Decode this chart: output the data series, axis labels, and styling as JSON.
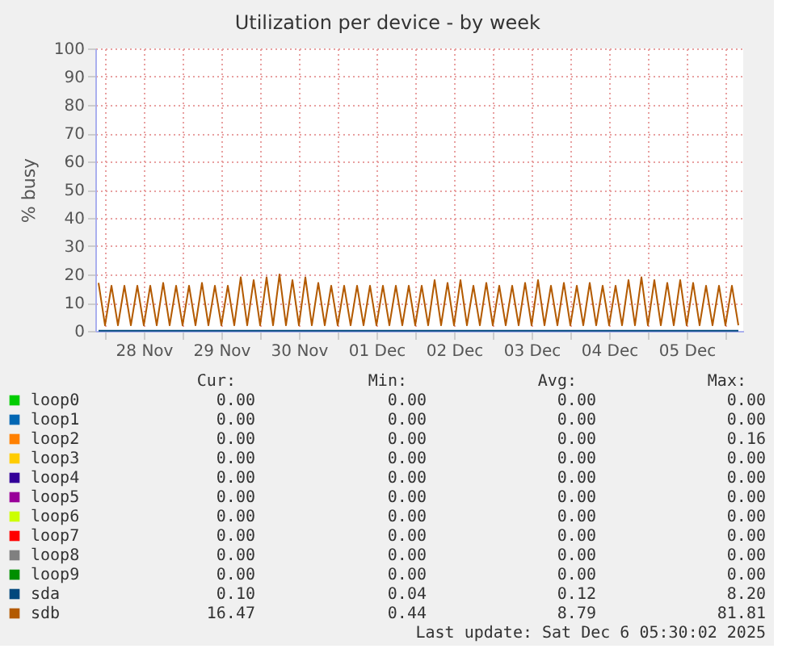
{
  "chart_data": {
    "type": "line",
    "title": "Utilization per device - by week",
    "ylabel": "% busy",
    "xlim": [
      "2025-11-27T21:00",
      "2025-12-06T05:30"
    ],
    "xticks": [
      {
        "value": "2025-11-28T00:00",
        "label": null
      },
      {
        "value": "2025-11-28T12:00",
        "label": "28 Nov"
      },
      {
        "value": "2025-11-29T00:00",
        "label": null
      },
      {
        "value": "2025-11-29T12:00",
        "label": "29 Nov"
      },
      {
        "value": "2025-11-30T00:00",
        "label": null
      },
      {
        "value": "2025-11-30T12:00",
        "label": "30 Nov"
      },
      {
        "value": "2025-12-01T00:00",
        "label": null
      },
      {
        "value": "2025-12-01T12:00",
        "label": "01 Dec"
      },
      {
        "value": "2025-12-02T00:00",
        "label": null
      },
      {
        "value": "2025-12-02T12:00",
        "label": "02 Dec"
      },
      {
        "value": "2025-12-03T00:00",
        "label": null
      },
      {
        "value": "2025-12-03T12:00",
        "label": "03 Dec"
      },
      {
        "value": "2025-12-04T00:00",
        "label": null
      },
      {
        "value": "2025-12-04T12:00",
        "label": "04 Dec"
      },
      {
        "value": "2025-12-05T00:00",
        "label": null
      },
      {
        "value": "2025-12-05T12:00",
        "label": "05 Dec"
      },
      {
        "value": "2025-12-06T00:00",
        "label": null
      }
    ],
    "ylim": [
      0,
      100
    ],
    "yticks": [
      0,
      10,
      20,
      30,
      40,
      50,
      60,
      70,
      80,
      90,
      100
    ],
    "grid": true,
    "legend": "bottom",
    "line_style": "solid",
    "series": [
      {
        "name": "loop0",
        "color": "#00cc00"
      },
      {
        "name": "loop1",
        "color": "#0066b3"
      },
      {
        "name": "loop2",
        "color": "#ff8000"
      },
      {
        "name": "loop3",
        "color": "#ffcc00"
      },
      {
        "name": "loop4",
        "color": "#330099"
      },
      {
        "name": "loop5",
        "color": "#990099"
      },
      {
        "name": "loop6",
        "color": "#ccff00"
      },
      {
        "name": "loop7",
        "color": "#ff0000"
      },
      {
        "name": "loop8",
        "color": "#808080"
      },
      {
        "name": "loop9",
        "color": "#008f00"
      },
      {
        "name": "sda",
        "color": "#00487d",
        "x": [
          "2025-11-27T22:00",
          "2025-12-06T04:00"
        ],
        "values": [
          0.1,
          0.1
        ]
      },
      {
        "name": "sdb",
        "color": "#b35a00",
        "x": [
          "2025-11-27T22:00",
          "2025-11-28T00:00",
          "2025-11-28T02:00",
          "2025-11-28T04:00",
          "2025-11-28T06:00",
          "2025-11-28T08:00",
          "2025-11-28T10:00",
          "2025-11-28T12:00",
          "2025-11-28T14:00",
          "2025-11-28T16:00",
          "2025-11-28T18:00",
          "2025-11-28T20:00",
          "2025-11-28T22:00",
          "2025-11-29T00:00",
          "2025-11-29T02:00",
          "2025-11-29T04:00",
          "2025-11-29T06:00",
          "2025-11-29T08:00",
          "2025-11-29T10:00",
          "2025-11-29T12:00",
          "2025-11-29T14:00",
          "2025-11-29T16:00",
          "2025-11-29T18:00",
          "2025-11-29T20:00",
          "2025-11-29T22:00",
          "2025-11-30T00:00",
          "2025-11-30T02:00",
          "2025-11-30T04:00",
          "2025-11-30T06:00",
          "2025-11-30T08:00",
          "2025-11-30T10:00",
          "2025-11-30T12:00",
          "2025-11-30T14:00",
          "2025-11-30T16:00",
          "2025-11-30T18:00",
          "2025-11-30T20:00",
          "2025-11-30T22:00",
          "2025-12-01T00:00",
          "2025-12-01T02:00",
          "2025-12-01T04:00",
          "2025-12-01T06:00",
          "2025-12-01T08:00",
          "2025-12-01T10:00",
          "2025-12-01T12:00",
          "2025-12-01T14:00",
          "2025-12-01T16:00",
          "2025-12-01T18:00",
          "2025-12-01T20:00",
          "2025-12-01T22:00",
          "2025-12-02T00:00",
          "2025-12-02T02:00",
          "2025-12-02T04:00",
          "2025-12-02T06:00",
          "2025-12-02T08:00",
          "2025-12-02T10:00",
          "2025-12-02T12:00",
          "2025-12-02T14:00",
          "2025-12-02T16:00",
          "2025-12-02T18:00",
          "2025-12-02T20:00",
          "2025-12-02T22:00",
          "2025-12-03T00:00",
          "2025-12-03T02:00",
          "2025-12-03T04:00",
          "2025-12-03T06:00",
          "2025-12-03T08:00",
          "2025-12-03T10:00",
          "2025-12-03T12:00",
          "2025-12-03T14:00",
          "2025-12-03T16:00",
          "2025-12-03T18:00",
          "2025-12-03T20:00",
          "2025-12-03T22:00",
          "2025-12-04T00:00",
          "2025-12-04T02:00",
          "2025-12-04T04:00",
          "2025-12-04T06:00",
          "2025-12-04T08:00",
          "2025-12-04T10:00",
          "2025-12-04T12:00",
          "2025-12-04T14:00",
          "2025-12-04T16:00",
          "2025-12-04T18:00",
          "2025-12-04T20:00",
          "2025-12-04T22:00",
          "2025-12-05T00:00",
          "2025-12-05T02:00",
          "2025-12-05T04:00",
          "2025-12-05T06:00",
          "2025-12-05T08:00",
          "2025-12-05T10:00",
          "2025-12-05T12:00",
          "2025-12-05T14:00",
          "2025-12-05T16:00",
          "2025-12-05T18:00",
          "2025-12-05T20:00",
          "2025-12-05T22:00",
          "2025-12-06T00:00",
          "2025-12-06T02:00",
          "2025-12-06T04:00"
        ],
        "values": [
          17,
          2,
          16,
          2,
          16,
          2,
          16,
          2,
          16,
          2,
          17,
          2,
          16,
          2,
          16,
          2,
          17,
          2,
          16,
          2,
          16,
          2,
          19,
          2,
          18,
          2,
          19,
          2,
          20,
          2,
          18,
          2,
          19,
          2,
          17,
          2,
          16,
          2,
          16,
          2,
          16,
          2,
          16,
          2,
          16,
          2,
          16,
          2,
          16,
          2,
          16,
          2,
          18,
          2,
          17,
          2,
          18,
          2,
          16,
          2,
          17,
          2,
          16,
          2,
          16,
          2,
          17,
          2,
          18,
          2,
          16,
          2,
          17,
          2,
          16,
          2,
          17,
          2,
          16,
          2,
          16,
          2,
          18,
          2,
          19,
          2,
          18,
          2,
          17,
          2,
          18,
          2,
          17,
          2,
          16,
          2,
          16,
          2,
          16,
          2
        ]
      }
    ],
    "annotations": [
      "Cur:",
      "Min:",
      "Avg:",
      "Max:",
      "0.00",
      "0.00",
      "0.00",
      "0.00",
      "0.00",
      "0.00",
      "0.00",
      "0.00",
      "0.00",
      "0.00",
      "0.00",
      "0.16",
      "0.00",
      "0.00",
      "0.00",
      "0.00",
      "0.00",
      "0.00",
      "0.00",
      "0.00",
      "0.00",
      "0.00",
      "0.00",
      "0.00",
      "0.00",
      "0.00",
      "0.00",
      "0.00",
      "0.00",
      "0.00",
      "0.00",
      "0.00",
      "0.00",
      "0.00",
      "0.00",
      "0.00",
      "0.00",
      "0.00",
      "0.00",
      "0.00",
      "0.10",
      "0.04",
      "0.12",
      "8.20",
      "16.47",
      "0.44",
      "8.79",
      "81.81",
      "Last update: Sat Dec  6 05:30:02 2025"
    ]
  }
}
